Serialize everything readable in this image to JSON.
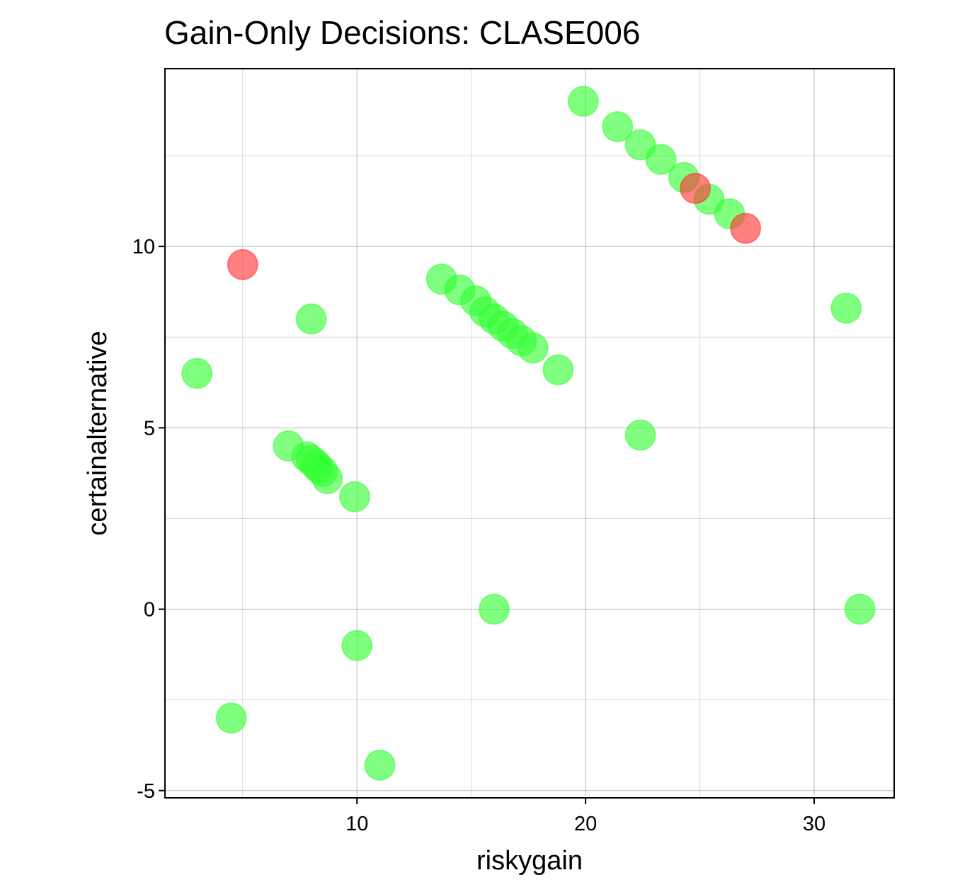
{
  "chart_data": {
    "type": "scatter",
    "title": "Gain-Only Decisions: CLASE006",
    "xlabel": "riskygain",
    "ylabel": "certainalternative",
    "xlim": [
      1.6,
      33.5
    ],
    "ylim": [
      -5.2,
      14.9
    ],
    "x_ticks": [
      10,
      20,
      30
    ],
    "y_ticks": [
      -5,
      0,
      5,
      10
    ],
    "x_tick_labels": [
      "10",
      "20",
      "30"
    ],
    "y_tick_labels": [
      "-5",
      "0",
      "5",
      "10"
    ],
    "grid": true,
    "legend": "none",
    "colors": {
      "accept": "#33ff33",
      "reject": "#ff3333"
    },
    "series": [
      {
        "color": "#33ff33",
        "points": [
          {
            "x": 19.9,
            "y": 14.0
          },
          {
            "x": 21.4,
            "y": 13.3
          },
          {
            "x": 22.4,
            "y": 12.8
          },
          {
            "x": 23.3,
            "y": 12.4
          },
          {
            "x": 24.3,
            "y": 11.9
          },
          {
            "x": 25.4,
            "y": 11.3
          },
          {
            "x": 26.3,
            "y": 10.9
          },
          {
            "x": 13.7,
            "y": 9.1
          },
          {
            "x": 14.5,
            "y": 8.8
          },
          {
            "x": 15.2,
            "y": 8.5
          },
          {
            "x": 15.6,
            "y": 8.2
          },
          {
            "x": 16.0,
            "y": 8.0
          },
          {
            "x": 16.4,
            "y": 7.8
          },
          {
            "x": 16.8,
            "y": 7.6
          },
          {
            "x": 17.2,
            "y": 7.4
          },
          {
            "x": 17.7,
            "y": 7.2
          },
          {
            "x": 18.8,
            "y": 6.6
          },
          {
            "x": 31.4,
            "y": 8.3
          },
          {
            "x": 8.0,
            "y": 8.0
          },
          {
            "x": 3.0,
            "y": 6.5
          },
          {
            "x": 22.4,
            "y": 4.8
          },
          {
            "x": 7.0,
            "y": 4.5
          },
          {
            "x": 7.8,
            "y": 4.2
          },
          {
            "x": 8.0,
            "y": 4.1
          },
          {
            "x": 8.2,
            "y": 4.0
          },
          {
            "x": 8.3,
            "y": 3.9
          },
          {
            "x": 8.5,
            "y": 3.8
          },
          {
            "x": 8.7,
            "y": 3.6
          },
          {
            "x": 9.9,
            "y": 3.1
          },
          {
            "x": 16.0,
            "y": 0.0
          },
          {
            "x": 32.0,
            "y": 0.0
          },
          {
            "x": 10.0,
            "y": -1.0
          },
          {
            "x": 4.5,
            "y": -3.0
          },
          {
            "x": 11.0,
            "y": -4.3
          }
        ]
      },
      {
        "color": "#ff3333",
        "points": [
          {
            "x": 5.0,
            "y": 9.5
          },
          {
            "x": 24.8,
            "y": 11.6
          },
          {
            "x": 27.0,
            "y": 10.5
          }
        ]
      }
    ]
  }
}
